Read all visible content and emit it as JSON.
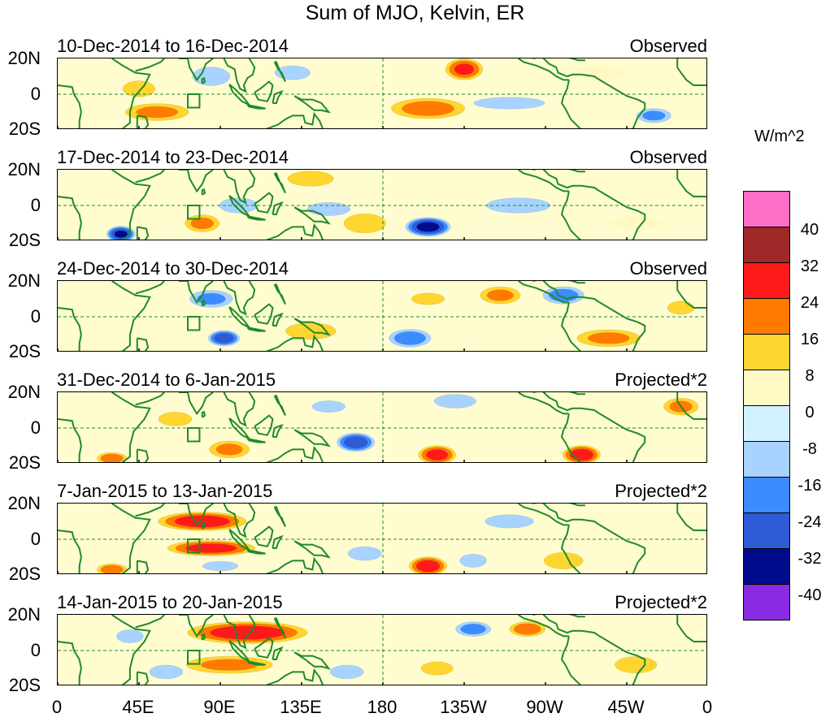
{
  "chart_data": {
    "type": "heatmap",
    "title": "Sum of MJO, Kelvin, ER",
    "units": "W/m^2",
    "lat_ticks": [
      "20N",
      "0",
      "20S"
    ],
    "lon_ticks": [
      "0",
      "45E",
      "90E",
      "135E",
      "180",
      "135W",
      "90W",
      "45W",
      "0"
    ],
    "lon_tick_values": [
      0,
      45,
      90,
      135,
      180,
      225,
      270,
      315,
      360
    ],
    "x_range": [
      0,
      360
    ],
    "y_range": [
      -20,
      20
    ],
    "colorbar": {
      "labels": [
        "40",
        "32",
        "24",
        "16",
        "8",
        "0",
        "-8",
        "-16",
        "-24",
        "-32",
        "-40"
      ],
      "colors": [
        "#ff6ec7",
        "#a02828",
        "#ff1a1a",
        "#ff7a00",
        "#ffd530",
        "#fff9c4",
        "#d2f2ff",
        "#a8d2ff",
        "#3c8cff",
        "#2f5bd6",
        "#000c8c",
        "#8a2be2"
      ]
    },
    "panels": [
      {
        "date": "10-Dec-2014 to 16-Dec-2014",
        "status": "Observed",
        "blobs": [
          {
            "lon": 45,
            "lat": 3,
            "rlon": 12,
            "rlat": 6,
            "v": 14
          },
          {
            "lon": 55,
            "lat": -10,
            "rlon": 22,
            "rlat": 6,
            "v": 18
          },
          {
            "lon": 85,
            "lat": 10,
            "rlon": 14,
            "rlat": 7,
            "v": -14
          },
          {
            "lon": 130,
            "lat": 12,
            "rlon": 15,
            "rlat": 6,
            "v": -10
          },
          {
            "lon": 205,
            "lat": -8,
            "rlon": 25,
            "rlat": 7,
            "v": 20
          },
          {
            "lon": 225,
            "lat": 14,
            "rlon": 12,
            "rlat": 7,
            "v": 26
          },
          {
            "lon": 250,
            "lat": -5,
            "rlon": 30,
            "rlat": 5,
            "v": -10
          },
          {
            "lon": 330,
            "lat": -12,
            "rlon": 12,
            "rlat": 5,
            "v": -18
          },
          {
            "lon": 300,
            "lat": 12,
            "rlon": 20,
            "rlat": 5,
            "v": 8
          }
        ]
      },
      {
        "date": "17-Dec-2014 to 23-Dec-2014",
        "status": "Observed",
        "blobs": [
          {
            "lon": 35,
            "lat": -16,
            "rlon": 9,
            "rlat": 5,
            "v": -34
          },
          {
            "lon": 80,
            "lat": -10,
            "rlon": 12,
            "rlat": 6,
            "v": 18
          },
          {
            "lon": 100,
            "lat": 0,
            "rlon": 15,
            "rlat": 6,
            "v": -12
          },
          {
            "lon": 140,
            "lat": 15,
            "rlon": 18,
            "rlat": 6,
            "v": 12
          },
          {
            "lon": 170,
            "lat": -10,
            "rlon": 15,
            "rlat": 7,
            "v": 16
          },
          {
            "lon": 205,
            "lat": -12,
            "rlon": 14,
            "rlat": 6,
            "v": -36
          },
          {
            "lon": 255,
            "lat": 0,
            "rlon": 25,
            "rlat": 6,
            "v": -12
          },
          {
            "lon": 320,
            "lat": -10,
            "rlon": 18,
            "rlat": 5,
            "v": 8
          },
          {
            "lon": 150,
            "lat": -2,
            "rlon": 16,
            "rlat": 5,
            "v": -14
          }
        ]
      },
      {
        "date": "24-Dec-2014 to 30-Dec-2014",
        "status": "Observed",
        "blobs": [
          {
            "lon": 85,
            "lat": 10,
            "rlon": 15,
            "rlat": 6,
            "v": -18
          },
          {
            "lon": 92,
            "lat": -12,
            "rlon": 10,
            "rlat": 5,
            "v": -30
          },
          {
            "lon": 140,
            "lat": -8,
            "rlon": 18,
            "rlat": 6,
            "v": 16
          },
          {
            "lon": 195,
            "lat": -12,
            "rlon": 14,
            "rlat": 6,
            "v": -22
          },
          {
            "lon": 245,
            "lat": 12,
            "rlon": 14,
            "rlat": 6,
            "v": 18
          },
          {
            "lon": 280,
            "lat": 12,
            "rlon": 14,
            "rlat": 6,
            "v": -20
          },
          {
            "lon": 305,
            "lat": -12,
            "rlon": 22,
            "rlat": 6,
            "v": 18
          },
          {
            "lon": 345,
            "lat": 5,
            "rlon": 10,
            "rlat": 5,
            "v": 14
          },
          {
            "lon": 205,
            "lat": 10,
            "rlon": 14,
            "rlat": 5,
            "v": 10
          }
        ]
      },
      {
        "date": "31-Dec-2014 to 6-Jan-2015",
        "status": "Projected*2",
        "blobs": [
          {
            "lon": 30,
            "lat": -17,
            "rlon": 10,
            "rlat": 4,
            "v": 22
          },
          {
            "lon": 65,
            "lat": 5,
            "rlon": 12,
            "rlat": 5,
            "v": 16
          },
          {
            "lon": 95,
            "lat": -12,
            "rlon": 14,
            "rlat": 6,
            "v": 18
          },
          {
            "lon": 165,
            "lat": -8,
            "rlon": 12,
            "rlat": 6,
            "v": -30
          },
          {
            "lon": 210,
            "lat": -15,
            "rlon": 12,
            "rlat": 6,
            "v": 28
          },
          {
            "lon": 290,
            "lat": -15,
            "rlon": 12,
            "rlat": 6,
            "v": 30
          },
          {
            "lon": 345,
            "lat": 12,
            "rlon": 12,
            "rlat": 6,
            "v": 18
          },
          {
            "lon": 220,
            "lat": 15,
            "rlon": 15,
            "rlat": 5,
            "v": -16
          },
          {
            "lon": 150,
            "lat": 12,
            "rlon": 14,
            "rlat": 5,
            "v": -10
          }
        ]
      },
      {
        "date": "7-Jan-2015 to 13-Jan-2015",
        "status": "Projected*2",
        "blobs": [
          {
            "lon": 80,
            "lat": 10,
            "rlon": 28,
            "rlat": 6,
            "v": 30
          },
          {
            "lon": 85,
            "lat": -5,
            "rlon": 28,
            "rlat": 5,
            "v": 28
          },
          {
            "lon": 30,
            "lat": -17,
            "rlon": 10,
            "rlat": 4,
            "v": 22
          },
          {
            "lon": 170,
            "lat": -8,
            "rlon": 12,
            "rlat": 5,
            "v": -16
          },
          {
            "lon": 205,
            "lat": -15,
            "rlon": 12,
            "rlat": 6,
            "v": 30
          },
          {
            "lon": 230,
            "lat": -12,
            "rlon": 10,
            "rlat": 5,
            "v": -14
          },
          {
            "lon": 280,
            "lat": -12,
            "rlon": 14,
            "rlat": 6,
            "v": 16
          },
          {
            "lon": 250,
            "lat": 10,
            "rlon": 18,
            "rlat": 5,
            "v": -14
          },
          {
            "lon": 90,
            "lat": -15,
            "rlon": 15,
            "rlat": 4,
            "v": -10
          }
        ]
      },
      {
        "date": "14-Jan-2015 to 20-Jan-2015",
        "status": "Projected*2",
        "blobs": [
          {
            "lon": 105,
            "lat": 10,
            "rlon": 38,
            "rlat": 7,
            "v": 30
          },
          {
            "lon": 95,
            "lat": -8,
            "rlon": 30,
            "rlat": 6,
            "v": 18
          },
          {
            "lon": 160,
            "lat": -12,
            "rlon": 12,
            "rlat": 5,
            "v": -16
          },
          {
            "lon": 210,
            "lat": -10,
            "rlon": 12,
            "rlat": 5,
            "v": 14
          },
          {
            "lon": 230,
            "lat": 12,
            "rlon": 12,
            "rlat": 5,
            "v": -20
          },
          {
            "lon": 260,
            "lat": 12,
            "rlon": 12,
            "rlat": 5,
            "v": 22
          },
          {
            "lon": 320,
            "lat": -8,
            "rlon": 15,
            "rlat": 6,
            "v": 16
          },
          {
            "lon": 60,
            "lat": -12,
            "rlon": 12,
            "rlat": 5,
            "v": -16
          },
          {
            "lon": 40,
            "lat": 8,
            "rlon": 10,
            "rlat": 5,
            "v": -14
          }
        ]
      }
    ]
  }
}
